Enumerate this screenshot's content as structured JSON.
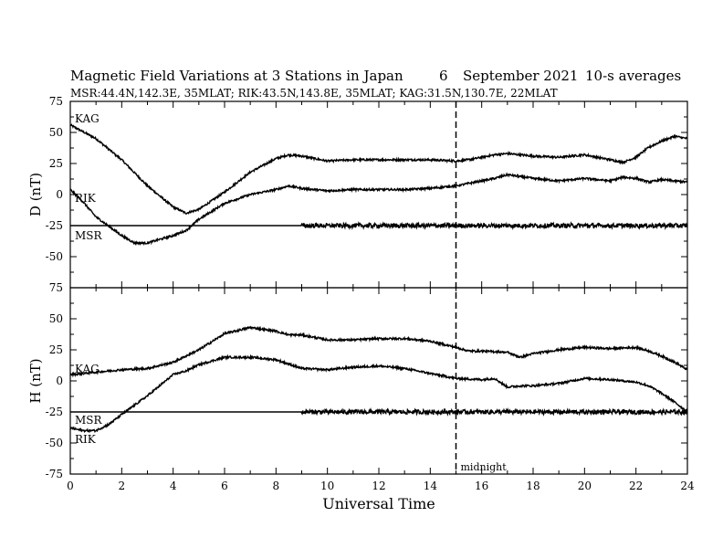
{
  "header": {
    "title": "Magnetic Field Variations at 3 Stations in Japan",
    "day": "6",
    "month_year": "September 2021",
    "averaging": "10-s averages",
    "stations_line": "MSR:44.4N,142.3E, 35MLAT;  RIK:43.5N,143.8E, 35MLAT;  KAG:31.5N,130.7E, 22MLAT"
  },
  "annotation": {
    "midnight_label": "midnight",
    "midnight_ut": 15
  },
  "chart_data": [
    {
      "type": "line",
      "ylabel": "D (nT)",
      "xlabel": "",
      "xlim": [
        0,
        24
      ],
      "ylim": [
        -75,
        75
      ],
      "yticks": [
        -75,
        -50,
        -25,
        0,
        25,
        50,
        75
      ],
      "series": [
        {
          "name": "KAG",
          "noise": 0.8,
          "x": [
            0,
            1,
            2,
            3,
            4,
            4.5,
            5,
            6,
            7,
            8,
            8.5,
            9,
            10,
            11,
            12,
            13,
            14,
            15,
            15.5,
            16,
            16.5,
            17,
            18,
            19,
            20,
            21,
            21.5,
            22,
            22.5,
            23,
            23.5,
            24
          ],
          "y": [
            56,
            45,
            28,
            7,
            -10,
            -15,
            -12,
            2,
            18,
            29,
            32,
            31,
            27,
            28,
            28,
            28,
            28,
            27,
            28,
            30,
            32,
            33,
            31,
            30,
            32,
            28,
            26,
            30,
            38,
            43,
            47,
            45
          ]
        },
        {
          "name": "RIK",
          "noise": 0.8,
          "x": [
            0,
            0.5,
            1,
            2,
            2.5,
            3,
            4,
            4.5,
            5,
            6,
            7,
            8,
            8.5,
            9,
            10,
            11,
            12,
            13,
            14,
            15,
            15.5,
            16,
            16.5,
            17,
            18,
            19,
            20,
            21,
            21.5,
            22,
            22.5,
            23,
            23.5,
            24
          ],
          "y": [
            4,
            -6,
            -18,
            -33,
            -39,
            -39,
            -33,
            -29,
            -20,
            -7,
            0,
            4,
            7,
            5,
            3,
            4,
            4,
            4,
            5,
            7,
            9,
            11,
            13,
            16,
            13,
            11,
            13,
            11,
            14,
            13,
            10,
            12,
            11,
            10
          ]
        },
        {
          "name": "MSR",
          "noise_after": 9,
          "noise": 1.8,
          "x": [
            0,
            24
          ],
          "y": [
            -25,
            -25
          ]
        }
      ]
    },
    {
      "type": "line",
      "ylabel": "H (nT)",
      "xlabel": "Universal Time",
      "xlim": [
        0,
        24
      ],
      "ylim": [
        -75,
        75
      ],
      "xticks": [
        0,
        2,
        4,
        6,
        8,
        10,
        12,
        14,
        16,
        18,
        20,
        22,
        24
      ],
      "yticks": [
        -75,
        -50,
        -25,
        0,
        25,
        50,
        75
      ],
      "series": [
        {
          "name": "KAG",
          "noise": 0.8,
          "x": [
            0,
            1,
            2,
            3,
            4,
            5,
            6,
            7,
            8,
            8.5,
            9,
            10,
            11,
            12,
            13,
            14,
            15,
            15.5,
            16,
            17,
            17.5,
            18,
            19,
            20,
            21,
            22,
            22.5,
            23,
            23.5,
            24
          ],
          "y": [
            5,
            7,
            9,
            10,
            15,
            25,
            38,
            43,
            40,
            37,
            37,
            33,
            33,
            34,
            34,
            32,
            27,
            24,
            24,
            23,
            19,
            22,
            25,
            27,
            26,
            27,
            24,
            20,
            15,
            9
          ]
        },
        {
          "name": "RIK",
          "noise": 0.8,
          "x": [
            0,
            0.5,
            1,
            1.5,
            2,
            3,
            4,
            4.5,
            5,
            6,
            7,
            8,
            9,
            10,
            11,
            12,
            13,
            14,
            15,
            16,
            16.5,
            17,
            17.5,
            18,
            19,
            20,
            21,
            22,
            22.5,
            23,
            23.5,
            24
          ],
          "y": [
            -38,
            -40,
            -40,
            -35,
            -27,
            -12,
            5,
            8,
            13,
            19,
            19,
            17,
            10,
            9,
            11,
            12,
            10,
            6,
            2,
            1,
            2,
            -5,
            -4,
            -4,
            -2,
            2,
            1,
            -1,
            -4,
            -10,
            -17,
            -25
          ]
        },
        {
          "name": "MSR",
          "noise_after": 9,
          "noise": 1.8,
          "x": [
            0,
            24
          ],
          "y": [
            -25,
            -25
          ]
        }
      ]
    }
  ]
}
